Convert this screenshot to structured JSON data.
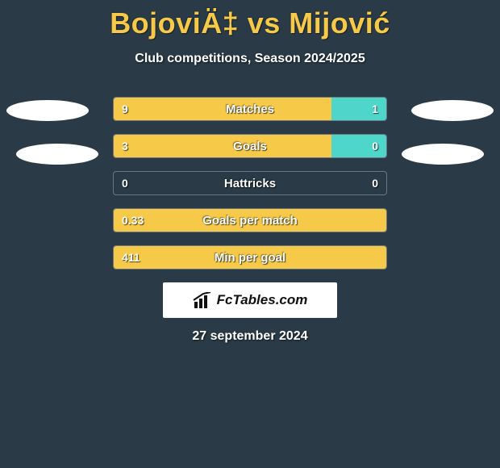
{
  "title": "BojoviÄ‡ vs Mijović",
  "subtitle": "Club competitions, Season 2024/2025",
  "date": "27 september 2024",
  "logo_text": "FcTables.com",
  "colors": {
    "background": "#2a3b47",
    "accent_title": "#f7c948",
    "bar_left": "#f7c948",
    "bar_right": "#4dd6c9",
    "bar_border": "#6a7782",
    "text": "#ffffff",
    "logo_bg": "#ffffff",
    "logo_text": "#111111"
  },
  "bars": [
    {
      "label": "Matches",
      "left_value": "9",
      "right_value": "1",
      "left_pct": 80,
      "right_pct": 20
    },
    {
      "label": "Goals",
      "left_value": "3",
      "right_value": "0",
      "left_pct": 80,
      "right_pct": 20
    },
    {
      "label": "Hattricks",
      "left_value": "0",
      "right_value": "0",
      "left_pct": 0,
      "right_pct": 0
    },
    {
      "label": "Goals per match",
      "left_value": "0.33",
      "right_value": "",
      "left_pct": 100,
      "right_pct": 0
    },
    {
      "label": "Min per goal",
      "left_value": "411",
      "right_value": "",
      "left_pct": 100,
      "right_pct": 0
    }
  ]
}
